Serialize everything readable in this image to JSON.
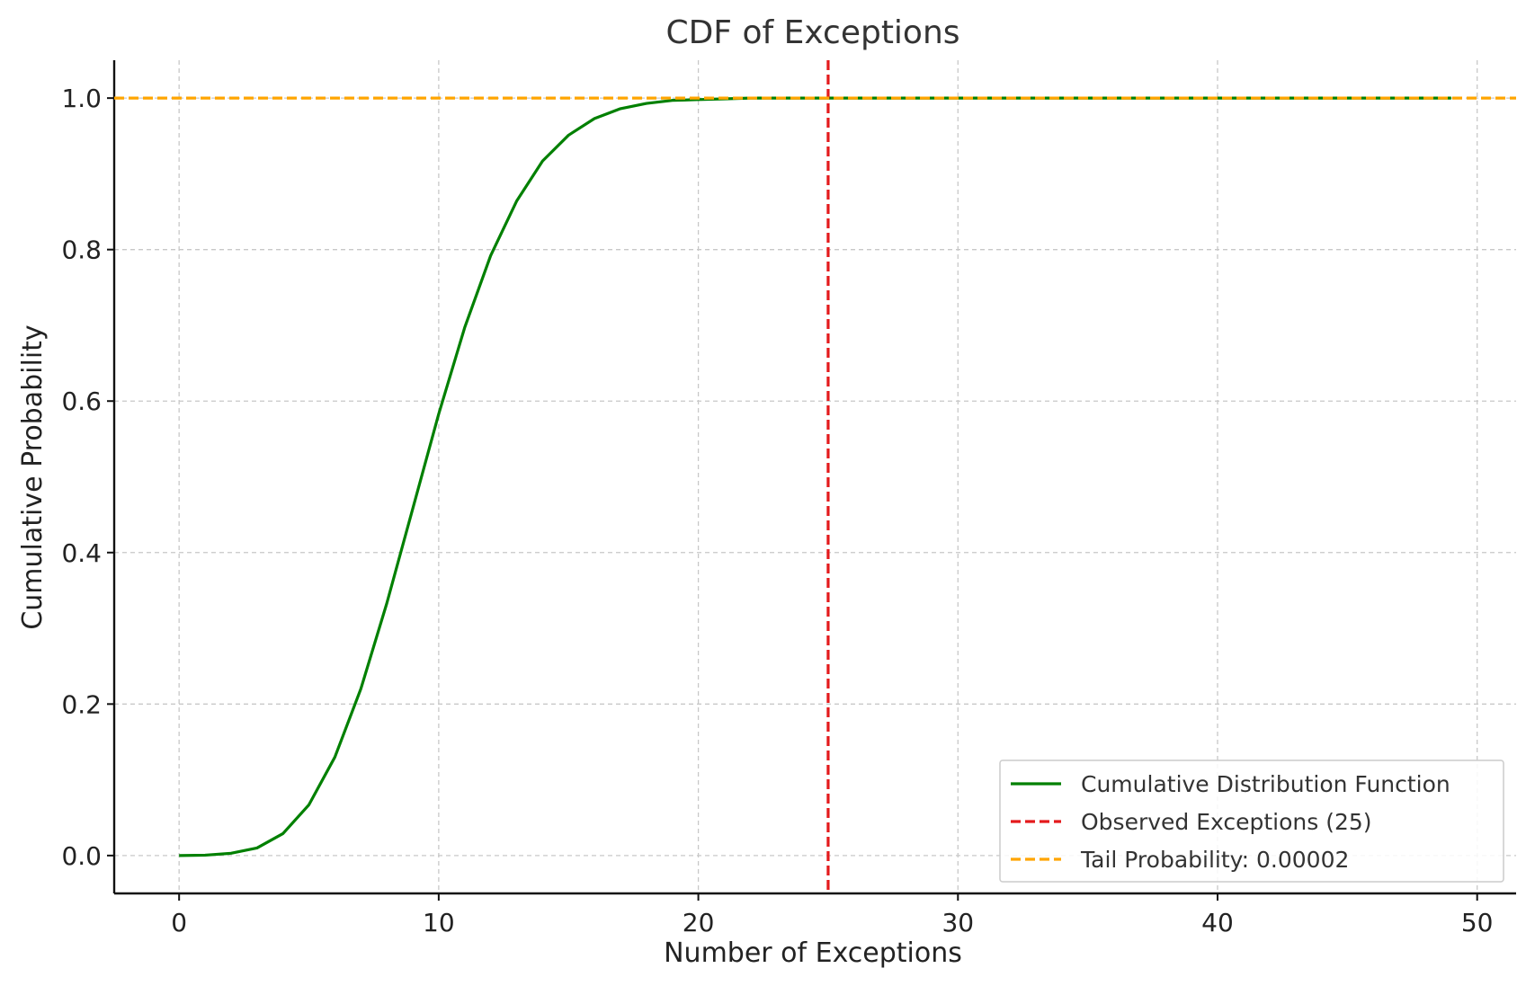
{
  "chart_data": {
    "type": "line",
    "title": "CDF of Exceptions",
    "xlabel": "Number of Exceptions",
    "ylabel": "Cumulative Probability",
    "xlim": [
      -2.5,
      51.5
    ],
    "ylim": [
      -0.05,
      1.05
    ],
    "xticks": [
      0,
      10,
      20,
      30,
      40,
      50
    ],
    "xtick_labels": [
      "0",
      "10",
      "20",
      "30",
      "40",
      "50"
    ],
    "yticks": [
      0.0,
      0.2,
      0.4,
      0.6,
      0.8,
      1.0
    ],
    "ytick_labels": [
      "0.0",
      "0.2",
      "0.4",
      "0.6",
      "0.8",
      "1.0"
    ],
    "grid": true,
    "legend_position": "bottom-right",
    "series": [
      {
        "name": "Cumulative Distribution Function",
        "color": "#008000",
        "style": "solid",
        "x": [
          0,
          1,
          2,
          3,
          4,
          5,
          6,
          7,
          8,
          9,
          10,
          11,
          12,
          13,
          14,
          15,
          16,
          17,
          18,
          19,
          20,
          21,
          22,
          23,
          24,
          25,
          26,
          27,
          28,
          29,
          30,
          31,
          32,
          33,
          34,
          35,
          36,
          37,
          38,
          39,
          40,
          41,
          42,
          43,
          44,
          45,
          46,
          47,
          48,
          49
        ],
        "y": [
          0.0,
          0.0005,
          0.003,
          0.01,
          0.029,
          0.067,
          0.13,
          0.22,
          0.333,
          0.458,
          0.583,
          0.697,
          0.792,
          0.864,
          0.917,
          0.951,
          0.973,
          0.986,
          0.993,
          0.997,
          0.998,
          0.999,
          1.0,
          1.0,
          1.0,
          1.0,
          1.0,
          1.0,
          1.0,
          1.0,
          1.0,
          1.0,
          1.0,
          1.0,
          1.0,
          1.0,
          1.0,
          1.0,
          1.0,
          1.0,
          1.0,
          1.0,
          1.0,
          1.0,
          1.0,
          1.0,
          1.0,
          1.0,
          1.0,
          1.0
        ]
      },
      {
        "name": "Observed Exceptions (25)",
        "color": "#e41a1c",
        "style": "dashed",
        "orientation": "vertical",
        "x": 25
      },
      {
        "name": "Tail Probability: 0.00002",
        "color": "#ffa500",
        "style": "dashed",
        "orientation": "horizontal",
        "y": 1.0
      }
    ]
  }
}
